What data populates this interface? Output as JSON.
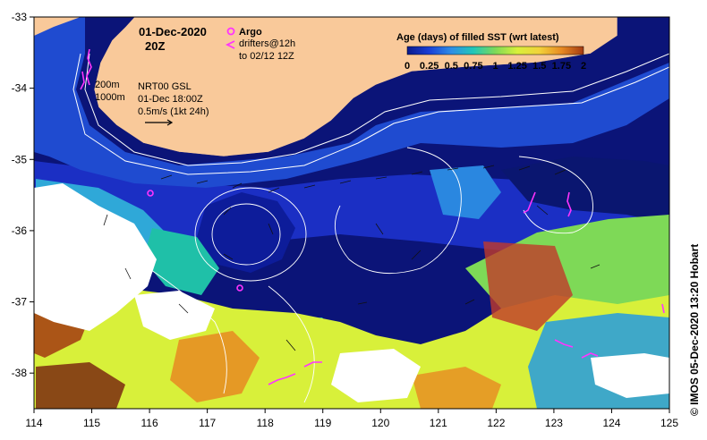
{
  "map": {
    "date": "01-Dec-2020",
    "time": "20Z",
    "argo_label": "Argo",
    "drifters_label": "drifters@12h",
    "drifters_window": "to 02/12 12Z",
    "contour_200": "200m",
    "contour_1000": "1000m",
    "product_label": "NRT00 GSL",
    "product_date": "01-Dec 18:00Z",
    "scale_label": "0.5m/s (1kt 24h)",
    "credit": "© IMOS 05-Dec-2020 13:20 Hobart"
  },
  "legend": {
    "title": "Age (days) of filled SST (wrt latest)",
    "tick_labels": [
      "0",
      "0.25",
      "0.5",
      "0.75",
      "1",
      "1.25",
      "1.5",
      "1.75",
      "2"
    ],
    "min": 0,
    "max": 2,
    "colors": [
      "#0a1a8c",
      "#1a3fd6",
      "#2e8ee6",
      "#22c7b8",
      "#7ed957",
      "#d8f03a",
      "#f2d23a",
      "#e88a22",
      "#a33a12"
    ]
  },
  "axes": {
    "x_ticks": [
      "114",
      "115",
      "116",
      "117",
      "118",
      "119",
      "120",
      "121",
      "122",
      "123",
      "124",
      "125"
    ],
    "y_ticks": [
      "-33",
      "-34",
      "-35",
      "-36",
      "-37",
      "-38"
    ],
    "lon_range": [
      114,
      125
    ],
    "lat_range": [
      -38.5,
      -33
    ]
  },
  "colors": {
    "land": "#f9c99a",
    "ocean_deep": "#0b1478",
    "ocean_mid": "#1b2fc4",
    "ocean_shelf": "#2a73d8",
    "cloud_gap": "#ffffff",
    "argo": "#ff33ff",
    "contour": "#ffffff"
  }
}
